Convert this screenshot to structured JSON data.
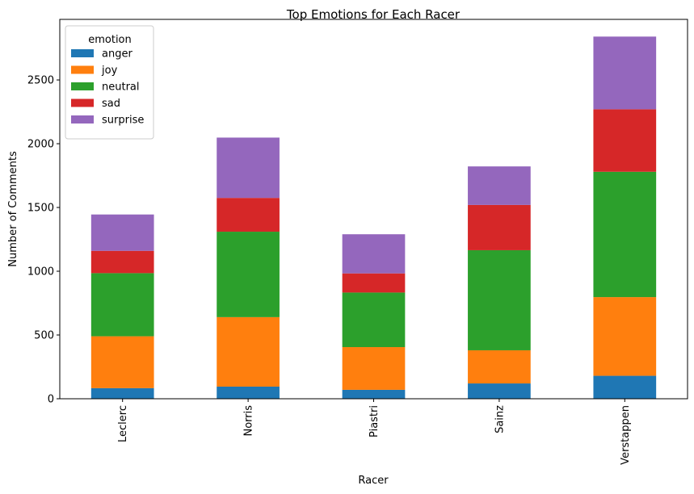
{
  "chart_data": {
    "type": "bar",
    "stacked": true,
    "title": "Top Emotions for Each Racer",
    "xlabel": "Racer",
    "ylabel": "Number of Comments",
    "categories": [
      "Leclerc",
      "Norris",
      "Piastri",
      "Sainz",
      "Verstappen"
    ],
    "ylim": [
      0,
      2975
    ],
    "yticks": [
      0,
      500,
      1000,
      1500,
      2000,
      2500
    ],
    "grid": false,
    "legend": {
      "title": "emotion",
      "placement": "top-left"
    },
    "series": [
      {
        "name": "anger",
        "color": "#1f77b4",
        "values": [
          83,
          95,
          70,
          120,
          180
        ]
      },
      {
        "name": "joy",
        "color": "#ff7f0e",
        "values": [
          407,
          545,
          335,
          260,
          617
        ]
      },
      {
        "name": "neutral",
        "color": "#2ca02c",
        "values": [
          495,
          670,
          428,
          785,
          983
        ]
      },
      {
        "name": "sad",
        "color": "#d62728",
        "values": [
          175,
          265,
          150,
          355,
          490
        ]
      },
      {
        "name": "surprise",
        "color": "#9467bd",
        "values": [
          285,
          473,
          307,
          302,
          570
        ]
      }
    ]
  }
}
